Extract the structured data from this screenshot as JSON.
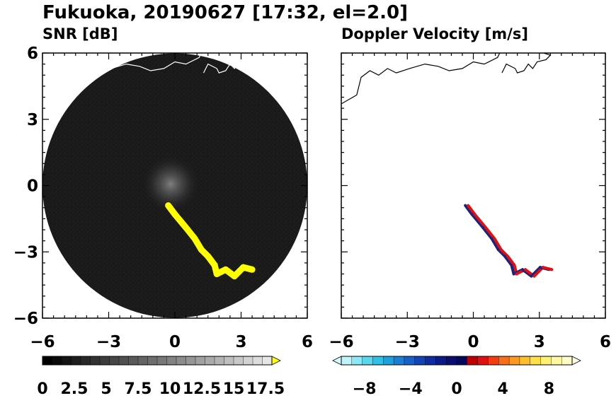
{
  "figure_title": "Fukuoka, 20190627 [17:32, el=2.0]",
  "chart_data": [
    {
      "type": "heatmap",
      "projection": "polar-radar",
      "title": "SNR [dB]",
      "xlim": [
        -6,
        6
      ],
      "ylim": [
        -6,
        6
      ],
      "xticks": [
        "−6",
        "−3",
        "0",
        "3",
        "6"
      ],
      "yticks": [
        "6",
        "3",
        "0",
        "−3",
        "−6"
      ],
      "xtick_values": [
        -6,
        -3,
        0,
        3,
        6
      ],
      "ytick_values": [
        6,
        3,
        0,
        -3,
        -6
      ],
      "radar_range": 6,
      "background_color": "#1a1a1a",
      "colorbar": {
        "min": 0,
        "max": 18,
        "extend": "max",
        "tick_labels": [
          "0",
          "2.5",
          "5",
          "7.5",
          "10",
          "12.5",
          "15",
          "17.5"
        ],
        "tick_values": [
          0,
          2.5,
          5,
          7.5,
          10,
          12.5,
          15,
          17.5
        ],
        "colors": [
          "#000000",
          "#0a0a0a",
          "#141414",
          "#1e1e1e",
          "#282828",
          "#323232",
          "#3c3c3c",
          "#464646",
          "#505050",
          "#5a5a5a",
          "#646464",
          "#6e6e6e",
          "#787878",
          "#828282",
          "#8c8c8c",
          "#969696",
          "#a0a0a0",
          "#aaaaaa",
          "#b4b4b4",
          "#bebebe",
          "#c8c8c8",
          "#d2d2d2",
          "#dcdcdc",
          "#e6e6e6"
        ],
        "extend_color": "#ffff00"
      },
      "echo_band": [
        [
          -0.3,
          -0.9
        ],
        [
          0.0,
          -1.3
        ],
        [
          0.5,
          -1.9
        ],
        [
          0.9,
          -2.4
        ],
        [
          1.2,
          -2.9
        ],
        [
          1.5,
          -3.2
        ],
        [
          1.8,
          -3.6
        ],
        [
          1.9,
          -4.0
        ],
        [
          2.3,
          -3.8
        ],
        [
          2.7,
          -4.1
        ],
        [
          3.1,
          -3.7
        ],
        [
          3.5,
          -3.8
        ]
      ],
      "echo_color": "#ffff00"
    },
    {
      "type": "heatmap",
      "projection": "polar-radar",
      "title": "Doppler Velocity [m/s]",
      "xlim": [
        -6,
        6
      ],
      "ylim": [
        -6,
        6
      ],
      "xticks": [
        "−6",
        "−3",
        "0",
        "3",
        "6"
      ],
      "yticks": [],
      "xtick_values": [
        -6,
        -3,
        0,
        3,
        6
      ],
      "colorbar": {
        "min": -10,
        "max": 10,
        "extend": "both",
        "tick_labels": [
          "−8",
          "−4",
          "0",
          "4",
          "8"
        ],
        "tick_values": [
          -8,
          -4,
          0,
          4,
          8
        ],
        "colors": [
          "#bff4fb",
          "#8ce8f6",
          "#5ad7ef",
          "#2fc0e6",
          "#1ea0dd",
          "#1a7fd4",
          "#1660c8",
          "#1444b4",
          "#102c9e",
          "#0c1a86",
          "#0a0e70",
          "#08085a",
          "#c00000",
          "#e01010",
          "#f43c10",
          "#f86e18",
          "#fa9a22",
          "#fcc02e",
          "#fde04a",
          "#fef070",
          "#fff8a0",
          "#fffcc8"
        ],
        "extend_low_color": "#d8fbff",
        "extend_high_color": "#fffde0"
      },
      "echo_band": [
        [
          -0.3,
          -0.9
        ],
        [
          0.0,
          -1.3
        ],
        [
          0.5,
          -1.9
        ],
        [
          0.9,
          -2.4
        ],
        [
          1.2,
          -2.9
        ],
        [
          1.5,
          -3.2
        ],
        [
          1.8,
          -3.6
        ],
        [
          1.9,
          -4.0
        ],
        [
          2.3,
          -3.8
        ],
        [
          2.7,
          -4.1
        ],
        [
          3.1,
          -3.7
        ],
        [
          3.5,
          -3.8
        ]
      ],
      "approaching_color": "#1a237e",
      "receding_color": "#e01010"
    }
  ]
}
